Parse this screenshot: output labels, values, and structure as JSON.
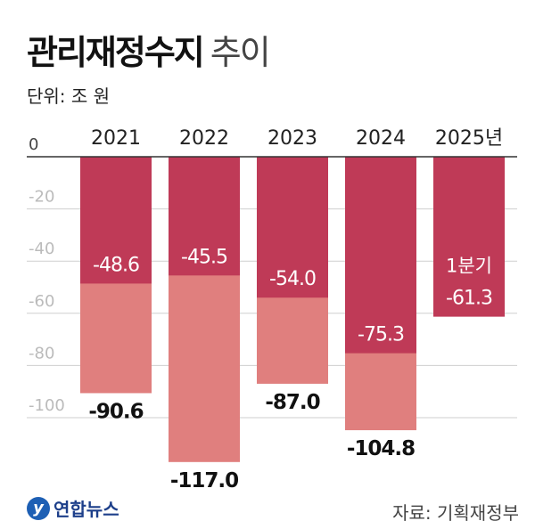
{
  "title": "관리재정수지",
  "title_suffix": "추이",
  "unit_label": "단위: 조 원",
  "source": "자료: 기획재정부",
  "logo_text": "연합뉴스",
  "colors": {
    "quarter_or_partial": "#bf3a57",
    "total": "#e07f7e",
    "grid": "#cfcfcf",
    "axis": "#333333"
  },
  "chart_data": {
    "type": "bar",
    "categories": [
      "2021",
      "2022",
      "2023",
      "2024",
      "2025년"
    ],
    "series": [
      {
        "values": [
          -48.6,
          -45.5,
          -54.0,
          -75.3,
          -61.3
        ],
        "labels": [
          "-48.6",
          "-45.5",
          "-54.0",
          "-75.3",
          "-61.3"
        ],
        "label_prefix": [
          "",
          "",
          "",
          "",
          "1분기"
        ]
      },
      {
        "values": [
          -90.6,
          -117.0,
          -87.0,
          -104.8,
          null
        ],
        "labels": [
          "-90.6",
          "-117.0",
          "-87.0",
          "-104.8",
          ""
        ]
      }
    ],
    "yticks": [
      0,
      -20,
      -40,
      -60,
      -80,
      -100
    ],
    "ytick_labels": [
      "0",
      "-20",
      "-40",
      "-60",
      "-80",
      "-100"
    ],
    "ylim": [
      -120,
      0
    ],
    "grid": true
  }
}
